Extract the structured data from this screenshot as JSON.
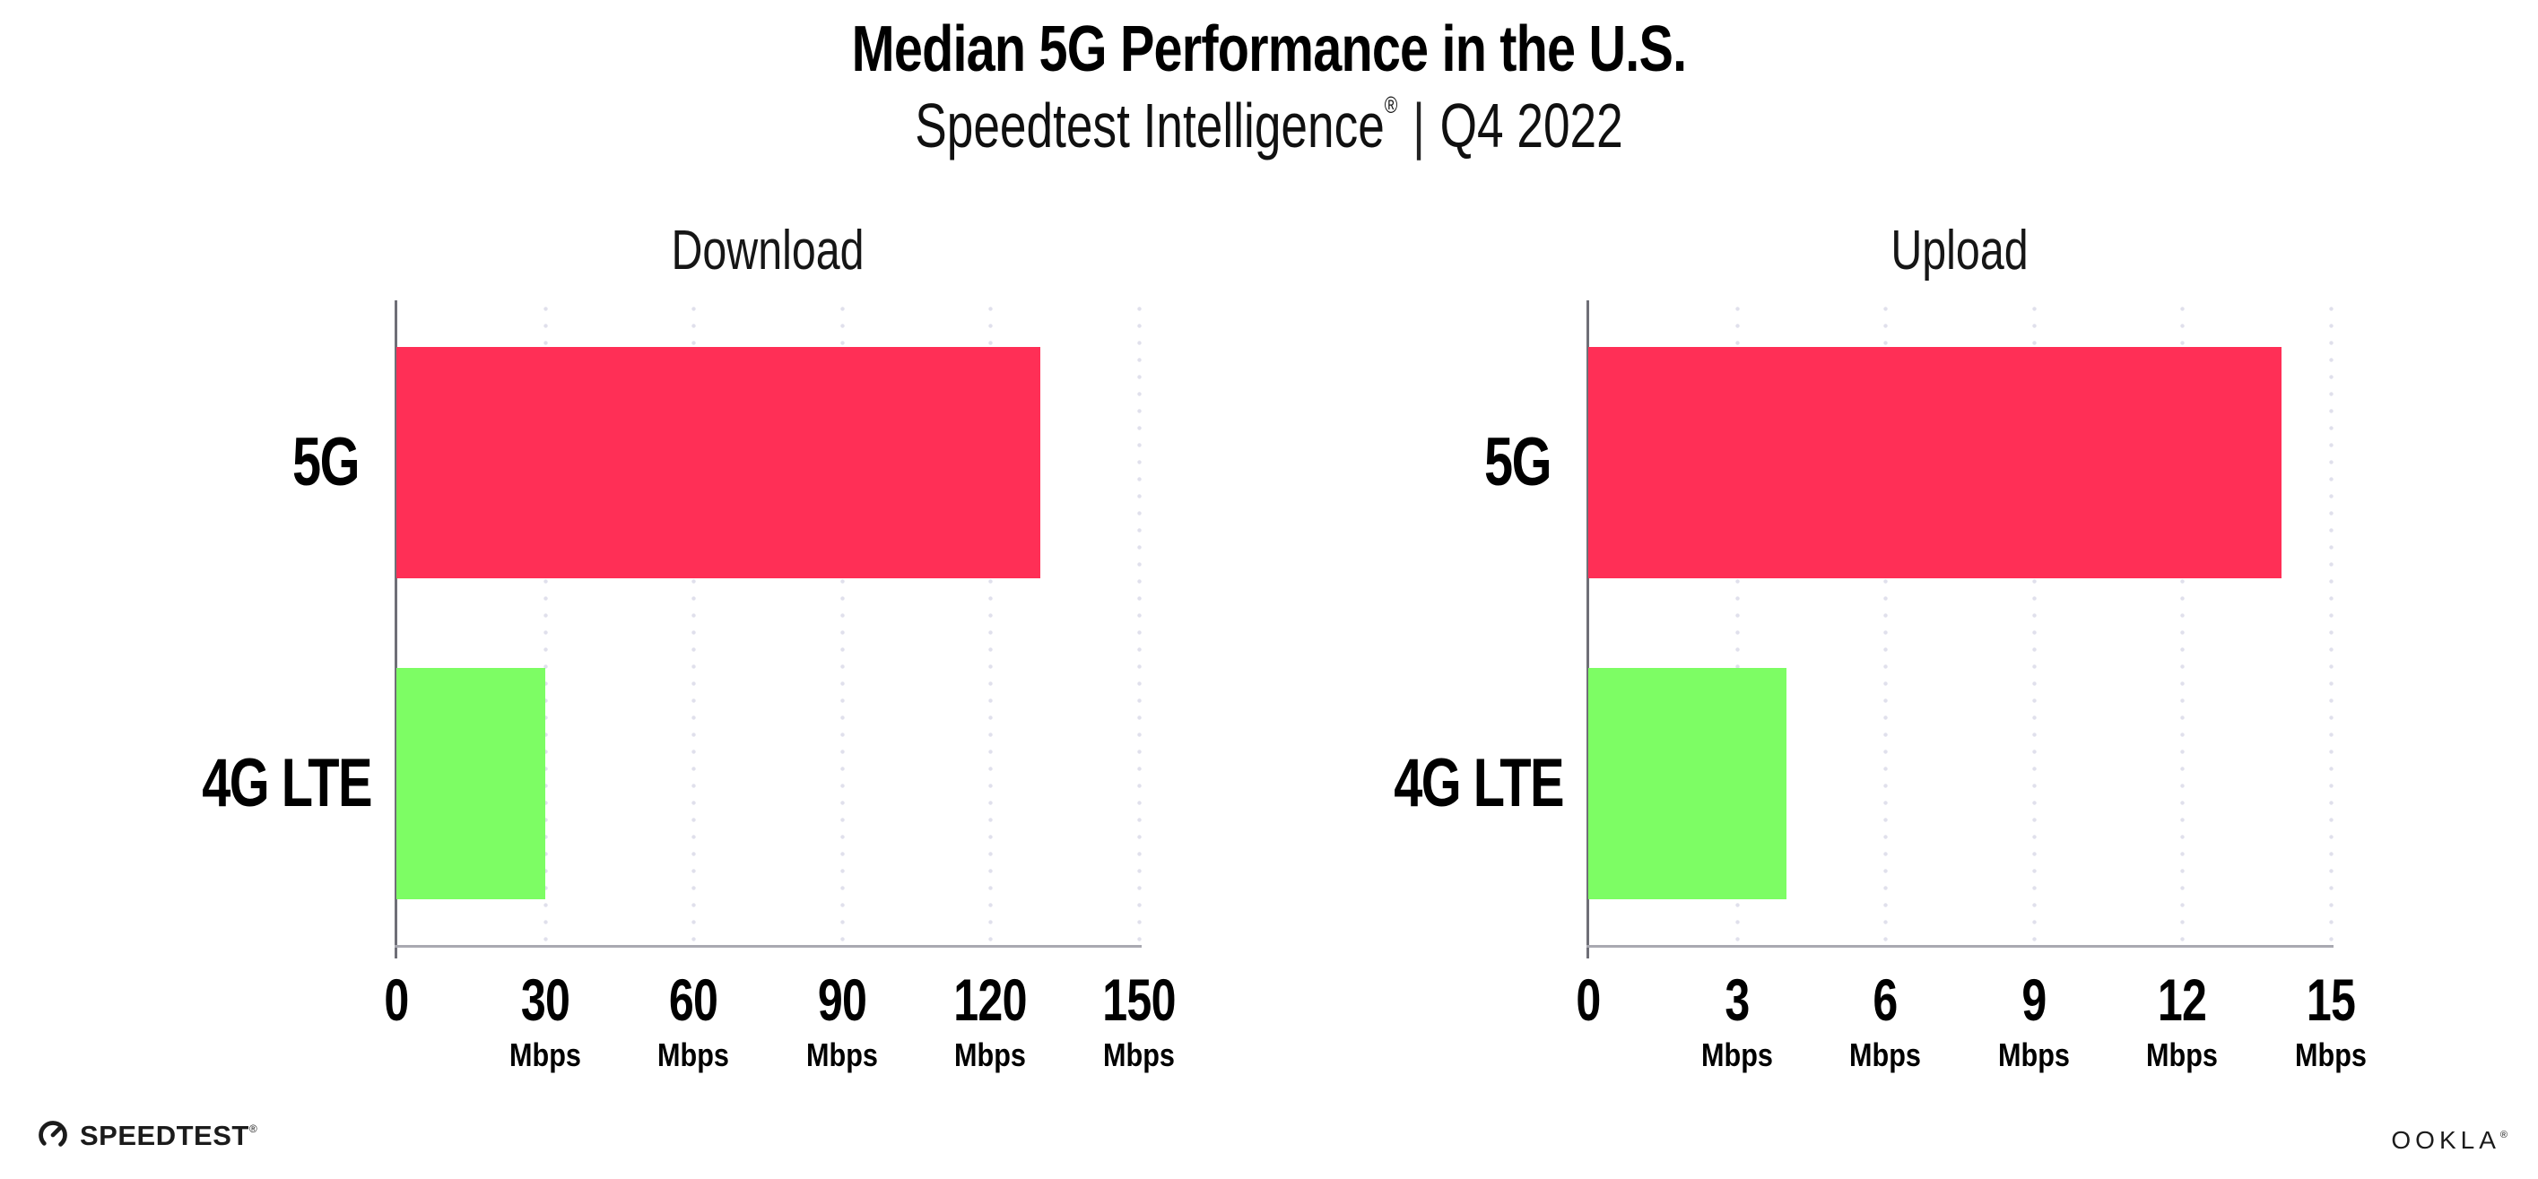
{
  "header": {
    "title": "Median 5G Performance in the U.S.",
    "subtitle": {
      "product": "Speedtest Intelligence",
      "registered_mark": "®",
      "separator": "|",
      "period": "Q4 2022"
    }
  },
  "colors": {
    "bar_5g": "#FF2F56",
    "bar_4g_lte": "#7DFD64",
    "gridline_dot": "#E0E0EC",
    "x_axis_line": "#A9A9B1",
    "y_axis_line": "#6F6F77",
    "text": "#000000"
  },
  "chart_data": [
    {
      "type": "bar",
      "orientation": "horizontal",
      "title": "Download",
      "categories": [
        "5G",
        "4G LTE"
      ],
      "values": [
        130,
        30
      ],
      "unit": "Mbps",
      "xlim": [
        0,
        150
      ],
      "xticks": [
        0,
        30,
        60,
        90,
        120,
        150
      ],
      "bar_colors": [
        "#FF2F56",
        "#7DFD64"
      ],
      "grid": "dotted-vertical",
      "legend": "none"
    },
    {
      "type": "bar",
      "orientation": "horizontal",
      "title": "Upload",
      "categories": [
        "5G",
        "4G LTE"
      ],
      "values": [
        14,
        4
      ],
      "unit": "Mbps",
      "xlim": [
        0,
        15
      ],
      "xticks": [
        0,
        3,
        6,
        9,
        12,
        15
      ],
      "bar_colors": [
        "#FF2F56",
        "#7DFD64"
      ],
      "grid": "dotted-vertical",
      "legend": "none"
    }
  ],
  "footer": {
    "speedtest_wordmark": "SPEEDTEST",
    "speedtest_mark": "®",
    "ookla_wordmark": "OOKLA",
    "ookla_mark": "®"
  }
}
